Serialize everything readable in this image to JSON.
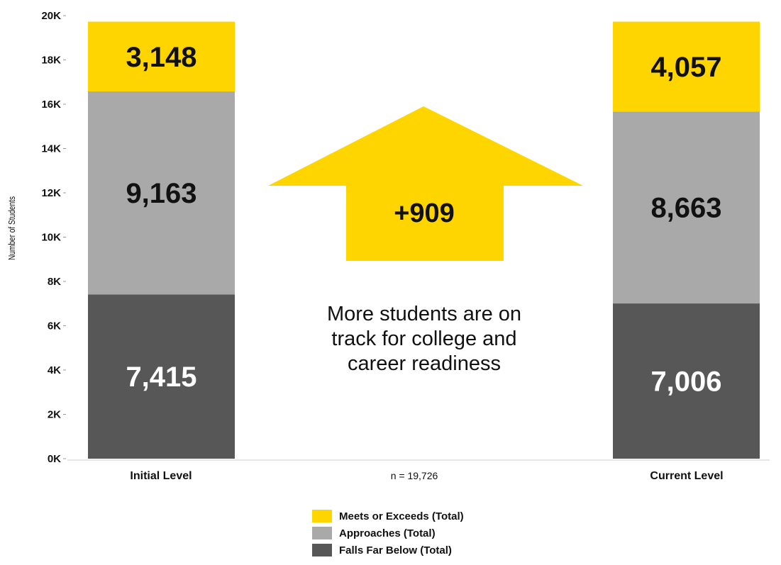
{
  "chart_data": {
    "type": "bar",
    "stacked": true,
    "categories": [
      "Initial Level",
      "Current Level"
    ],
    "series": [
      {
        "name": "Falls Far Below (Total)",
        "values": [
          7415,
          7006
        ],
        "color": "#575757",
        "label_color": "#ffffff"
      },
      {
        "name": "Approaches (Total)",
        "values": [
          9163,
          8663
        ],
        "color": "#a9a9a9",
        "label_color": "#111111"
      },
      {
        "name": "Meets or Exceeds (Total)",
        "values": [
          3148,
          4057
        ],
        "color": "#ffd500",
        "label_color": "#111111"
      }
    ],
    "data_labels": [
      [
        "7,415",
        "9,163",
        "3,148"
      ],
      [
        "7,006",
        "8,663",
        "4,057"
      ]
    ],
    "ylabel": "Number of Students",
    "ylim": [
      0,
      20000
    ],
    "y_ticks": [
      0,
      2000,
      4000,
      6000,
      8000,
      10000,
      12000,
      14000,
      16000,
      18000,
      20000
    ],
    "y_tick_labels": [
      "0K",
      "2K",
      "4K",
      "6K",
      "8K",
      "10K",
      "12K",
      "14K",
      "16K",
      "18K",
      "20K"
    ],
    "grid": false,
    "legend_position": "bottom-center",
    "legend_order": [
      "Meets or Exceeds (Total)",
      "Approaches (Total)",
      "Falls Far Below (Total)"
    ],
    "annotations": {
      "n_label": "n = 19,726",
      "arrow_label": "+909",
      "arrow_color": "#ffd500",
      "note_lines": [
        "More students are on",
        "track for college and",
        "career readiness"
      ]
    }
  }
}
